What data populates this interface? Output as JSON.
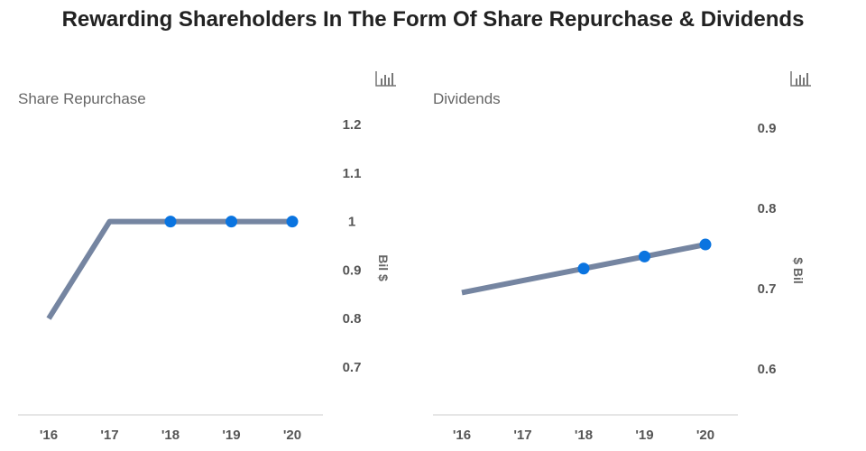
{
  "title": "Rewarding Shareholders In The Form Of Share Repurchase & Dividends",
  "icons": {
    "chart_icon": "bar-chart-icon",
    "line_color": "#7585a1",
    "point_color": "#0a74e0"
  },
  "chart_data": [
    {
      "type": "line",
      "title": "Share Repurchase",
      "ylabel": "Bil $",
      "categories": [
        "'16",
        "'17",
        "'18",
        "'19",
        "'20"
      ],
      "values": [
        0.8,
        1.0,
        1.0,
        1.0,
        1.0
      ],
      "markers": [
        false,
        false,
        true,
        true,
        true
      ],
      "yticks": [
        0.7,
        0.8,
        0.9,
        1,
        1.1,
        1.2
      ],
      "ylim": [
        0.6,
        1.25
      ],
      "grid": false
    },
    {
      "type": "line",
      "title": "Dividends",
      "ylabel": "$ Bil",
      "categories": [
        "'16",
        "'17",
        "'18",
        "'19",
        "'20"
      ],
      "values": [
        0.695,
        0.71,
        0.725,
        0.74,
        0.755
      ],
      "markers": [
        false,
        false,
        true,
        true,
        true
      ],
      "yticks": [
        0.6,
        0.7,
        0.8,
        0.9
      ],
      "ylim": [
        0.55,
        0.95
      ],
      "grid": false
    }
  ]
}
